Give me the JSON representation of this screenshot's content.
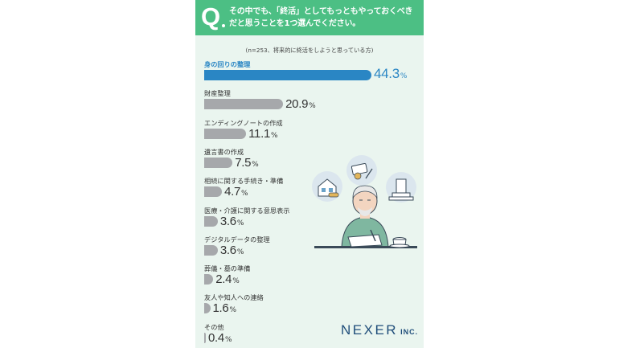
{
  "survey": {
    "question_line1": "その中でも、「終活」としてもっともやっておくべき",
    "question_line2": "だと思うことを1つ選んでください。",
    "note": "(n=253、将来的に終活をしようと思っている方)",
    "logo_main": "NEXER",
    "logo_sub": "INC."
  },
  "colors": {
    "header": "#4cbf84",
    "background": "#eaf5ef",
    "top_bar": "#2a86c4",
    "bar": "#a6a8ab"
  },
  "chart_data": {
    "type": "bar",
    "orientation": "horizontal",
    "unit": "%",
    "categories": [
      "身の回りの整理",
      "財産整理",
      "エンディングノートの作成",
      "遺言書の作成",
      "相続に関する手続き・準備",
      "医療・介護に関する意思表示",
      "デジタルデータの整理",
      "葬儀・墓の準備",
      "友人や知人への連絡",
      "その他"
    ],
    "values": [
      44.3,
      20.9,
      11.1,
      7.5,
      4.7,
      3.6,
      3.6,
      2.4,
      1.6,
      0.4
    ],
    "value_labels": [
      "44.3",
      "20.9",
      "11.1",
      "7.5",
      "4.7",
      "3.6",
      "3.6",
      "2.4",
      "1.6",
      "0.4"
    ],
    "percent_sign": "%",
    "xlim": [
      0,
      44.3
    ],
    "highlight_index": 0
  }
}
